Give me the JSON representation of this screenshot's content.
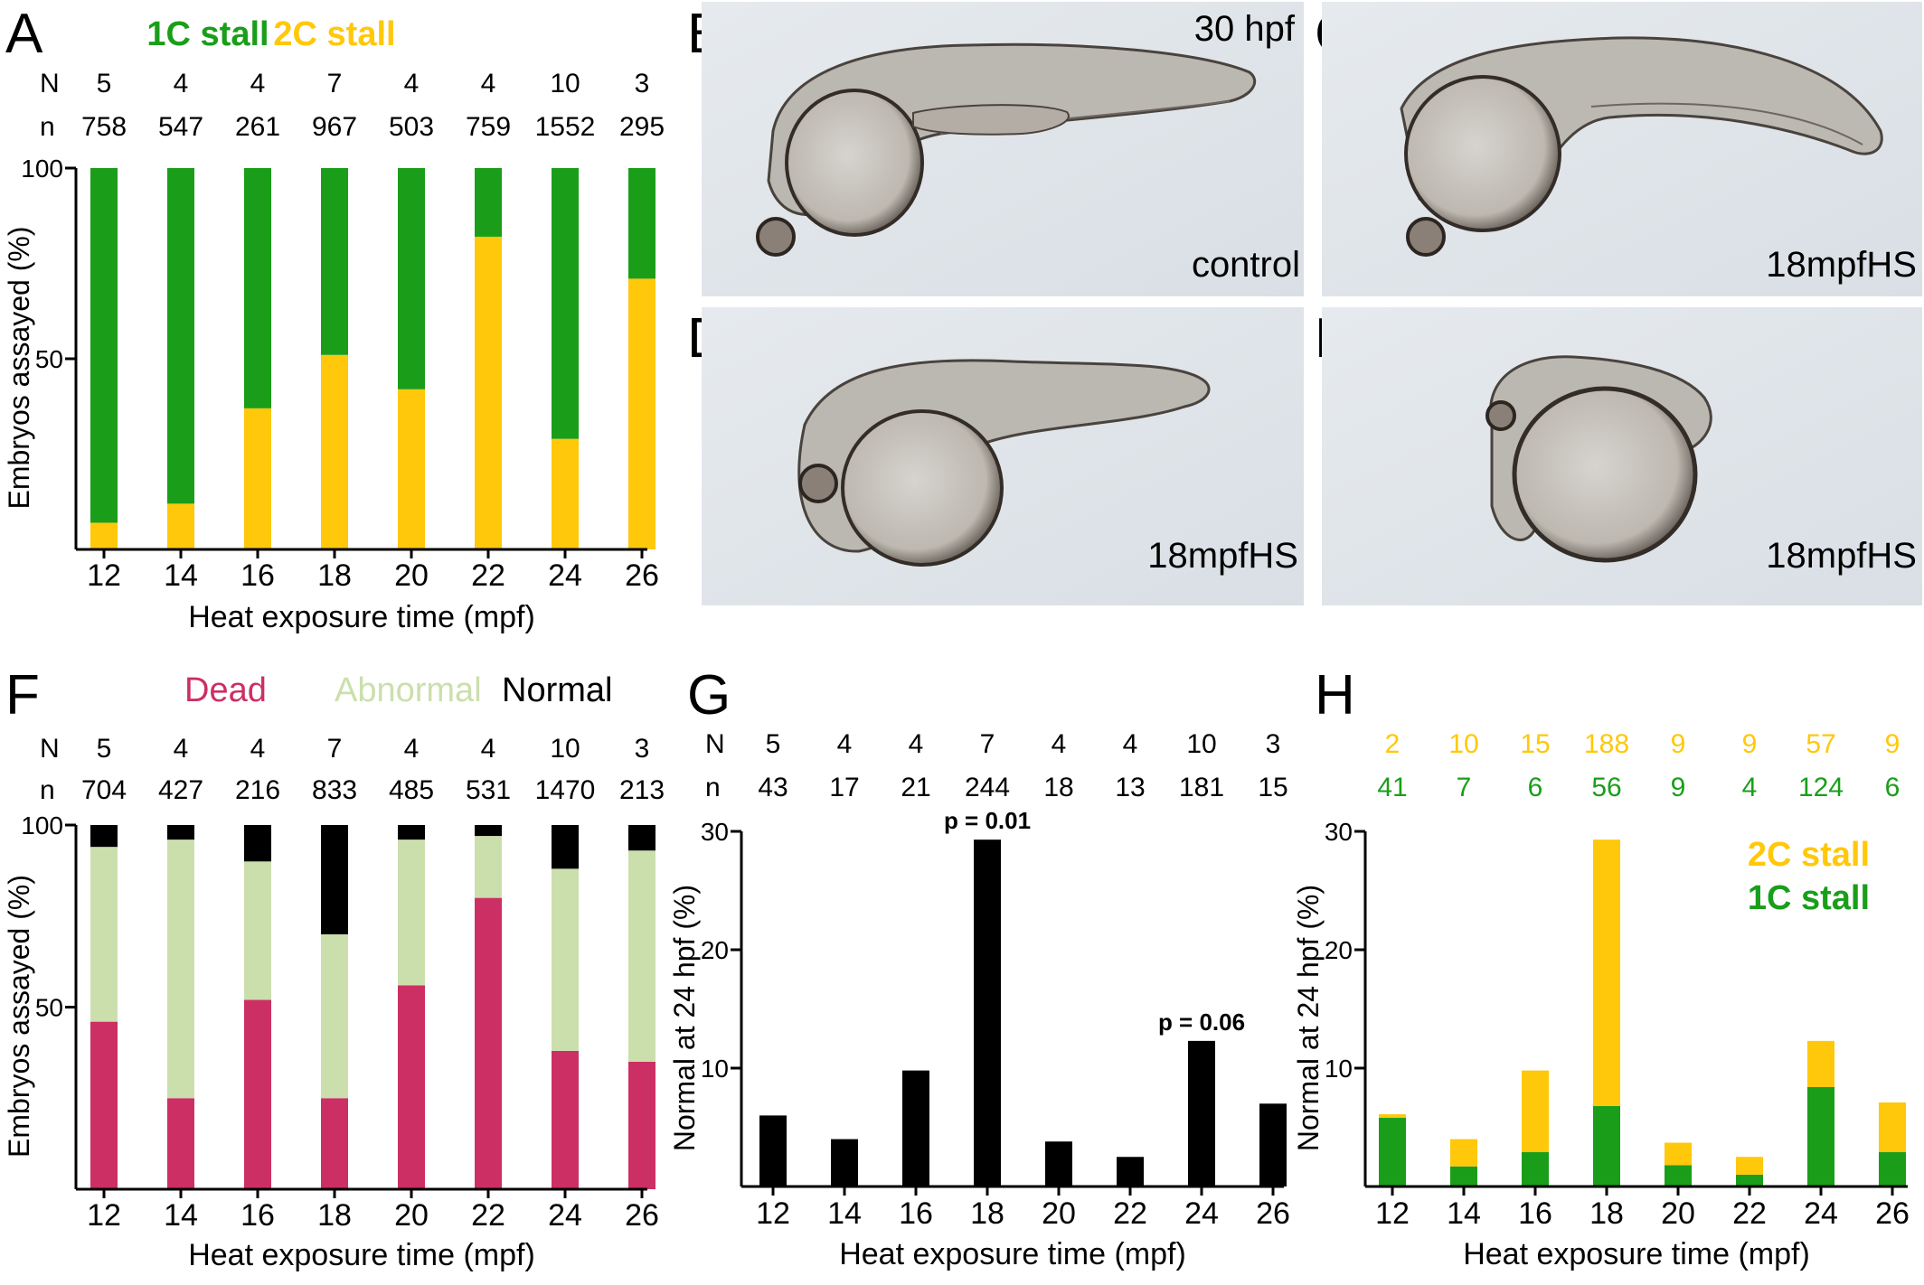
{
  "colors": {
    "c1": "#1a9e1a",
    "c2": "#ffc80a",
    "dead": "#cc2f64",
    "abnormal": "#cbdfad",
    "normal": "#000000"
  },
  "panels": {
    "A": {
      "letter": "A"
    },
    "B": {
      "letter": "B",
      "label_top": "30 hpf",
      "label_bottom": "control"
    },
    "C": {
      "letter": "C",
      "label_bottom": "18mpfHS"
    },
    "D": {
      "letter": "D",
      "label_bottom": "18mpfHS"
    },
    "E": {
      "letter": "E",
      "label_bottom": "18mpfHS"
    },
    "F": {
      "letter": "F"
    },
    "G": {
      "letter": "G"
    },
    "H": {
      "letter": "H"
    }
  },
  "chart_data": [
    {
      "id": "A",
      "type": "bar",
      "stacked": true,
      "categories": [
        "12",
        "14",
        "16",
        "18",
        "20",
        "22",
        "24",
        "26"
      ],
      "series": [
        {
          "name": "2C stall",
          "color": "#ffc80a",
          "values": [
            7,
            12,
            37,
            51,
            42,
            82,
            29,
            71
          ]
        },
        {
          "name": "1C stall",
          "color": "#1a9e1a",
          "values": [
            93,
            88,
            63,
            49,
            58,
            18,
            71,
            29
          ]
        }
      ],
      "legend": [
        {
          "label": "1C stall",
          "color": "#1a9e1a"
        },
        {
          "label": "2C stall",
          "color": "#ffc80a"
        }
      ],
      "count_rows": [
        {
          "label": "N",
          "values": [
            "5",
            "4",
            "4",
            "7",
            "4",
            "4",
            "10",
            "3"
          ]
        },
        {
          "label": "n",
          "values": [
            "758",
            "547",
            "261",
            "967",
            "503",
            "759",
            "1552",
            "295"
          ]
        }
      ],
      "ylim": [
        0,
        100
      ],
      "yticks": [
        "50",
        "100"
      ],
      "xlabel": "Heat exposure time (mpf)",
      "ylabel": "Embryos assayed (%)"
    },
    {
      "id": "F",
      "type": "bar",
      "stacked": true,
      "categories": [
        "12",
        "14",
        "16",
        "18",
        "20",
        "22",
        "24",
        "26"
      ],
      "series": [
        {
          "name": "Dead",
          "color": "#cc2f64",
          "values": [
            46,
            25,
            52,
            25,
            56,
            80,
            38,
            35
          ]
        },
        {
          "name": "Abnormal",
          "color": "#cbdfad",
          "values": [
            48,
            71,
            38,
            45,
            40,
            17,
            50,
            58
          ]
        },
        {
          "name": "Normal",
          "color": "#000000",
          "values": [
            6,
            4,
            10,
            30,
            4,
            3,
            12,
            7
          ]
        }
      ],
      "legend": [
        {
          "label": "Dead",
          "color": "#cc2f64"
        },
        {
          "label": "Abnormal",
          "color": "#cbdfad"
        },
        {
          "label": "Normal",
          "color": "#000000"
        }
      ],
      "count_rows": [
        {
          "label": "N",
          "values": [
            "5",
            "4",
            "4",
            "7",
            "4",
            "4",
            "10",
            "3"
          ]
        },
        {
          "label": "n",
          "values": [
            "704",
            "427",
            "216",
            "833",
            "485",
            "531",
            "1470",
            "213"
          ]
        }
      ],
      "ylim": [
        0,
        100
      ],
      "yticks": [
        "50",
        "100"
      ],
      "xlabel": "Heat exposure time (mpf)",
      "ylabel": "Embryos assayed (%)"
    },
    {
      "id": "G",
      "type": "bar",
      "stacked": false,
      "categories": [
        "12",
        "14",
        "16",
        "18",
        "20",
        "22",
        "24",
        "26"
      ],
      "series": [
        {
          "name": "",
          "color": "#000000",
          "values": [
            6,
            4,
            9.8,
            29.3,
            3.8,
            2.5,
            12.3,
            7
          ]
        }
      ],
      "annotations": [
        {
          "category": "18",
          "text": "p = 0.01"
        },
        {
          "category": "24",
          "text": "p = 0.06"
        }
      ],
      "count_rows": [
        {
          "label": "N",
          "values": [
            "5",
            "4",
            "4",
            "7",
            "4",
            "4",
            "10",
            "3"
          ]
        },
        {
          "label": "n",
          "values": [
            "43",
            "17",
            "21",
            "244",
            "18",
            "13",
            "181",
            "15"
          ]
        }
      ],
      "ylim": [
        0,
        30
      ],
      "yticks": [
        "10",
        "20",
        "30"
      ],
      "xlabel": "Heat exposure time (mpf)",
      "ylabel": "Normal at 24 hpf (%)"
    },
    {
      "id": "H",
      "type": "bar",
      "stacked": true,
      "categories": [
        "12",
        "14",
        "16",
        "18",
        "20",
        "22",
        "24",
        "26"
      ],
      "series": [
        {
          "name": "1C stall",
          "color": "#1a9e1a",
          "values": [
            5.8,
            1.7,
            2.9,
            6.8,
            1.8,
            1,
            8.4,
            2.9
          ]
        },
        {
          "name": "2C stall",
          "color": "#ffc80a",
          "values": [
            0.3,
            2.3,
            6.9,
            22.5,
            1.9,
            1.5,
            3.9,
            4.2
          ]
        }
      ],
      "legend": [
        {
          "label": "2C stall",
          "color": "#ffc80a"
        },
        {
          "label": "1C stall",
          "color": "#1a9e1a"
        }
      ],
      "count_rows": [
        {
          "label": "",
          "color": "#ffc80a",
          "values": [
            "2",
            "10",
            "15",
            "188",
            "9",
            "9",
            "57",
            "9"
          ]
        },
        {
          "label": "",
          "color": "#1a9e1a",
          "values": [
            "41",
            "7",
            "6",
            "56",
            "9",
            "4",
            "124",
            "6"
          ]
        }
      ],
      "ylim": [
        0,
        30
      ],
      "yticks": [
        "10",
        "20",
        "30"
      ],
      "xlabel": "Heat exposure time (mpf)",
      "ylabel": "Normal at 24 hpf (%)"
    }
  ]
}
